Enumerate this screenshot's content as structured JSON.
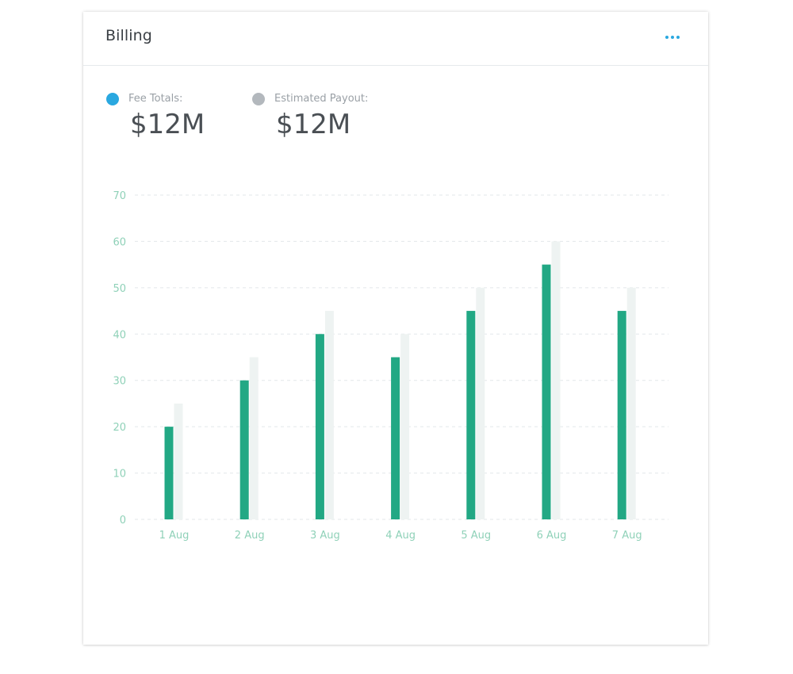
{
  "card": {
    "title": "Billing",
    "menu_icon": "more-horizontal-icon"
  },
  "summary": [
    {
      "label": "Fee Totals:",
      "value": "$12M",
      "color": "#2aa8e0"
    },
    {
      "label": "Estimated Payout:",
      "value": "$12M",
      "color": "#b3b8bd"
    }
  ],
  "chart_data": {
    "type": "bar",
    "categories": [
      "1 Aug",
      "2 Aug",
      "3 Aug",
      "4 Aug",
      "5 Aug",
      "6 Aug",
      "7 Aug"
    ],
    "series": [
      {
        "values": [
          20,
          30,
          40,
          35,
          45,
          55,
          45
        ],
        "color": "#22a884"
      },
      {
        "values": [
          25,
          35,
          45,
          40,
          50,
          60,
          50
        ],
        "color": "#eef3f2"
      }
    ],
    "yticks": [
      0,
      10,
      20,
      30,
      40,
      50,
      60,
      70
    ],
    "ylim": [
      0,
      70
    ],
    "grid": true,
    "grid_style": "dashed",
    "legend": "none"
  }
}
